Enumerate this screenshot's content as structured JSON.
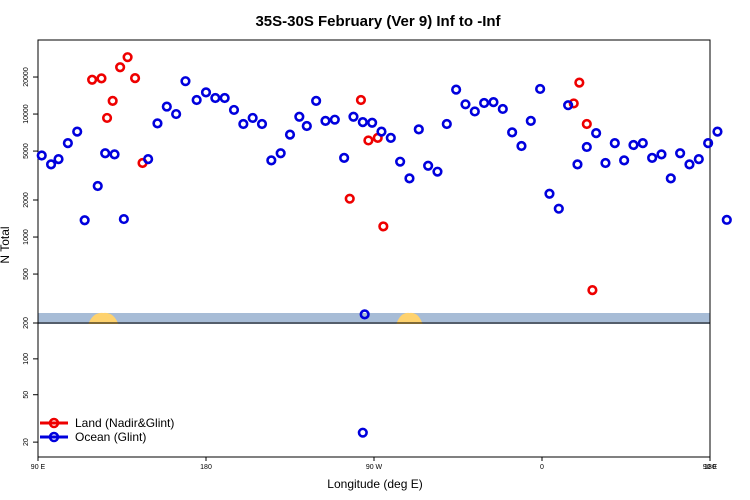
{
  "chart_data": {
    "type": "scatter",
    "title": "35S-30S February (Ver 9)   Inf to -Inf",
    "xlabel": "Longitude (deg E)",
    "ylabel": "N Total",
    "x_axis": {
      "range": [
        90,
        450
      ],
      "ticks": [
        {
          "value": 90,
          "label": "90 E"
        },
        {
          "value": 180,
          "label": "180"
        },
        {
          "value": 270,
          "label": "90 W"
        },
        {
          "value": 360,
          "label": "0"
        },
        {
          "value": 450,
          "label": "90 E"
        },
        {
          "value": 540,
          "label": "180"
        }
      ]
    },
    "upper_panel": {
      "scale": "log",
      "ylim": [
        200,
        40000
      ],
      "yticks": [
        {
          "value": 200,
          "label": "200"
        },
        {
          "value": 500,
          "label": "500"
        },
        {
          "value": 1000,
          "label": "1000"
        },
        {
          "value": 2000,
          "label": "2000"
        },
        {
          "value": 5000,
          "label": "5000"
        },
        {
          "value": 10000,
          "label": "10000"
        },
        {
          "value": 20000,
          "label": "20000"
        }
      ]
    },
    "lower_panel": {
      "scale": "log",
      "ylim": [
        15,
        200
      ],
      "yticks": [
        {
          "value": 20,
          "label": "20"
        },
        {
          "value": 50,
          "label": "50"
        },
        {
          "value": 100,
          "label": "100"
        },
        {
          "value": 200,
          "label": "200"
        }
      ]
    },
    "land_strip": {
      "ocean_color": "#a7bcd6",
      "land_color": "#fed26e",
      "land_segments": [
        [
          117,
          133
        ],
        [
          282,
          296
        ],
        [
          459,
          478
        ]
      ],
      "repeat_period": 360
    },
    "series": [
      {
        "name": "Land (Nadir&Glint)",
        "color": "#ee0000",
        "points": [
          [
            119,
            19000
          ],
          [
            124,
            19500
          ],
          [
            127,
            9300
          ],
          [
            130,
            12800
          ],
          [
            134,
            24000
          ],
          [
            138,
            29000
          ],
          [
            142,
            19600
          ],
          [
            146,
            4000
          ],
          [
            257,
            2050
          ],
          [
            263,
            13000
          ],
          [
            267,
            6100
          ],
          [
            272,
            6400
          ],
          [
            275,
            1220
          ],
          [
            377,
            12200
          ],
          [
            380,
            18000
          ],
          [
            384,
            8300
          ],
          [
            387,
            370
          ]
        ]
      },
      {
        "name": "Ocean (Glint)",
        "color": "#0000dd",
        "points": [
          [
            92,
            4600
          ],
          [
            97,
            3900
          ],
          [
            101,
            4300
          ],
          [
            106,
            5800
          ],
          [
            111,
            7200
          ],
          [
            115,
            1370
          ],
          [
            122,
            2600
          ],
          [
            126,
            4800
          ],
          [
            131,
            4700
          ],
          [
            136,
            1400
          ],
          [
            149,
            4300
          ],
          [
            154,
            8400
          ],
          [
            159,
            11500
          ],
          [
            164,
            10000
          ],
          [
            169,
            18500
          ],
          [
            175,
            13000
          ],
          [
            180,
            15000
          ],
          [
            185,
            13500
          ],
          [
            190,
            13500
          ],
          [
            195,
            10800
          ],
          [
            200,
            8300
          ],
          [
            205,
            9300
          ],
          [
            210,
            8300
          ],
          [
            215,
            4200
          ],
          [
            220,
            4800
          ],
          [
            225,
            6800
          ],
          [
            230,
            9500
          ],
          [
            234,
            8000
          ],
          [
            239,
            12800
          ],
          [
            244,
            8800
          ],
          [
            249,
            9000
          ],
          [
            254,
            4400
          ],
          [
            259,
            9500
          ],
          [
            264,
            8600
          ],
          [
            269,
            8500
          ],
          [
            274,
            7200
          ],
          [
            279,
            6400
          ],
          [
            284,
            4100
          ],
          [
            289,
            3000
          ],
          [
            294,
            7500
          ],
          [
            299,
            3800
          ],
          [
            304,
            3400
          ],
          [
            309,
            8300
          ],
          [
            314,
            15800
          ],
          [
            319,
            12000
          ],
          [
            324,
            10500
          ],
          [
            329,
            12300
          ],
          [
            334,
            12500
          ],
          [
            339,
            11000
          ],
          [
            344,
            7100
          ],
          [
            349,
            5500
          ],
          [
            354,
            8800
          ],
          [
            359,
            16000
          ],
          [
            364,
            2250
          ],
          [
            369,
            1700
          ],
          [
            374,
            11800
          ],
          [
            379,
            3900
          ],
          [
            384,
            5400
          ],
          [
            389,
            7000
          ],
          [
            394,
            4000
          ],
          [
            399,
            5800
          ],
          [
            404,
            4200
          ],
          [
            409,
            5600
          ],
          [
            414,
            5800
          ],
          [
            419,
            4400
          ],
          [
            424,
            4700
          ],
          [
            429,
            3000
          ],
          [
            434,
            4800
          ],
          [
            439,
            3900
          ],
          [
            444,
            4300
          ],
          [
            449,
            5800
          ],
          [
            454,
            7200
          ],
          [
            459,
            1380
          ],
          [
            265,
            235
          ],
          [
            264,
            24
          ]
        ]
      }
    ],
    "legend": {
      "position": "bottom-left",
      "entries": [
        {
          "label": "Land (Nadir&Glint)",
          "color": "#ee0000"
        },
        {
          "label": "Ocean (Glint)",
          "color": "#0000dd"
        }
      ]
    }
  }
}
